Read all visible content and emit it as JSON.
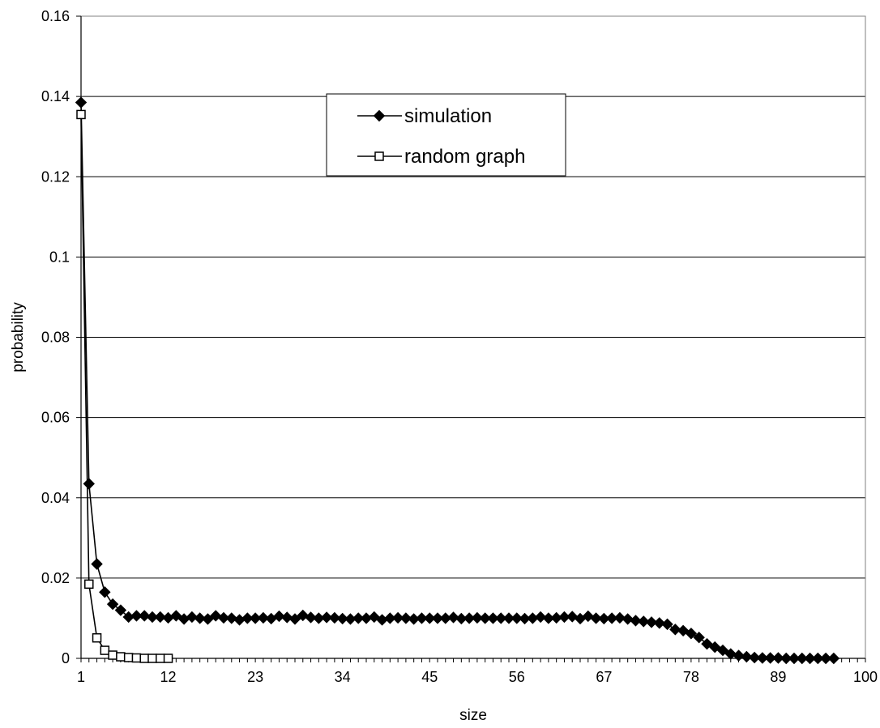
{
  "chart_data": {
    "type": "line",
    "title": "",
    "xlabel": "size",
    "ylabel": "probability",
    "xlim": [
      1,
      100
    ],
    "ylim": [
      0,
      0.16
    ],
    "x_ticks": [
      1,
      12,
      23,
      34,
      45,
      56,
      67,
      78,
      89,
      100
    ],
    "y_ticks": [
      0,
      0.02,
      0.04,
      0.06,
      0.08,
      0.1,
      0.12,
      0.14,
      0.16
    ],
    "y_tick_labels": [
      "0",
      "0.02",
      "0.04",
      "0.06",
      "0.08",
      "0.1",
      "0.12",
      "0.14",
      "0.16"
    ],
    "grid": "horizontal",
    "legend_position": "top-center",
    "series": [
      {
        "name": "simulation",
        "marker": "filled-diamond",
        "color": "#000000",
        "x_start": 1,
        "values": [
          0.1385,
          0.0435,
          0.0235,
          0.0165,
          0.0135,
          0.012,
          0.0103,
          0.0106,
          0.0106,
          0.0103,
          0.0103,
          0.0101,
          0.0106,
          0.0098,
          0.0103,
          0.01,
          0.0098,
          0.0106,
          0.0101,
          0.01,
          0.0096,
          0.01,
          0.01,
          0.0101,
          0.0099,
          0.0105,
          0.0102,
          0.0098,
          0.0107,
          0.0102,
          0.01,
          0.0102,
          0.0101,
          0.0099,
          0.0098,
          0.01,
          0.01,
          0.0103,
          0.0096,
          0.01,
          0.0101,
          0.01,
          0.0098,
          0.01,
          0.01,
          0.01,
          0.01,
          0.0102,
          0.0099,
          0.01,
          0.0101,
          0.01,
          0.01,
          0.01,
          0.01,
          0.01,
          0.0099,
          0.01,
          0.0103,
          0.01,
          0.0101,
          0.0103,
          0.0104,
          0.0099,
          0.0105,
          0.01,
          0.0099,
          0.01,
          0.0101,
          0.0098,
          0.0094,
          0.0092,
          0.009,
          0.0088,
          0.0085,
          0.0072,
          0.0069,
          0.0062,
          0.0052,
          0.0036,
          0.0028,
          0.002,
          0.0011,
          0.0007,
          0.0004,
          0.0002,
          0.0001,
          0.0001,
          0.0001,
          0.0,
          0.0,
          0.0,
          0.0,
          0.0,
          0.0,
          0.0
        ]
      },
      {
        "name": "random graph",
        "marker": "hollow-square",
        "color": "#000000",
        "x_start": 1,
        "values": [
          0.1355,
          0.0185,
          0.0051,
          0.002,
          0.0008,
          0.0004,
          0.0002,
          0.0001,
          0.0,
          0.0,
          0.0,
          0.0
        ]
      }
    ]
  }
}
